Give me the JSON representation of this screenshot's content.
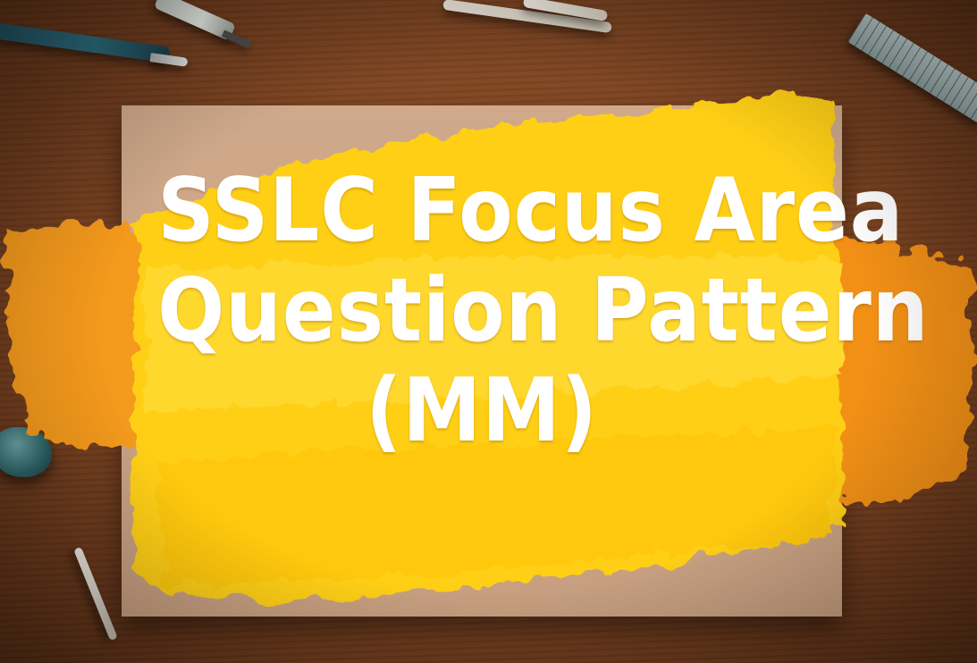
{
  "headline": {
    "line1": "SSLC Focus Area",
    "line2": "Question Pattern",
    "line3": "(MM)"
  },
  "colors": {
    "table_wood": "#7f4522",
    "paper": "#c9a182",
    "paint_yellow": "#ffd21a",
    "paint_orange": "#f59a1e",
    "text": "#ffffff"
  },
  "icons": {
    "pen_blue": "pen-icon",
    "pen_grey": "marker-icon",
    "ruler": "ruler-icon"
  }
}
